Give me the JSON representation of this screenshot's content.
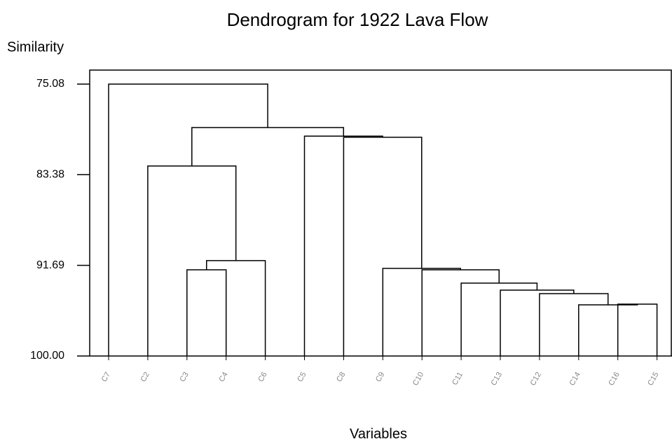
{
  "chart_data": {
    "type": "dendrogram",
    "title": "Dendrogram for 1922 Lava Flow",
    "y_label": "Similarity",
    "x_label": "Variables",
    "ylim": [
      100,
      75.08
    ],
    "yticks": [
      75.08,
      83.38,
      91.69,
      {
        "value": 100,
        "label": "100.00"
      }
    ],
    "tree": {
      "height": 75.08,
      "children": [
        "C7",
        {
          "height": 79.06,
          "children": [
            {
              "height": 82.59,
              "children": [
                "C2",
                {
                  "height": 91.26,
                  "children": [
                    {
                      "height": 92.1,
                      "children": [
                        "C3",
                        "C4"
                      ]
                    },
                    "C6"
                  ]
                }
              ]
            },
            {
              "height": 79.85,
              "children": [
                "C5",
                {
                  "height": 79.95,
                  "children": [
                    "C8",
                    {
                      "height": 91.97,
                      "children": [
                        "C9",
                        {
                          "height": 92.1,
                          "children": [
                            "C10",
                            {
                              "height": 93.32,
                              "children": [
                                "C11",
                                {
                                  "height": 93.96,
                                  "children": [
                                    "C13",
                                    {
                                      "height": 94.28,
                                      "children": [
                                        "C12",
                                        {
                                          "height": 95.31,
                                          "children": [
                                            "C14",
                                            {
                                              "height": 95.25,
                                              "children": [
                                                "C16",
                                                "C15"
                                              ]
                                            }
                                          ]
                                        }
                                      ]
                                    }
                                  ]
                                }
                              ]
                            }
                          ]
                        }
                      ]
                    }
                  ]
                }
              ]
            }
          ]
        }
      ]
    }
  }
}
